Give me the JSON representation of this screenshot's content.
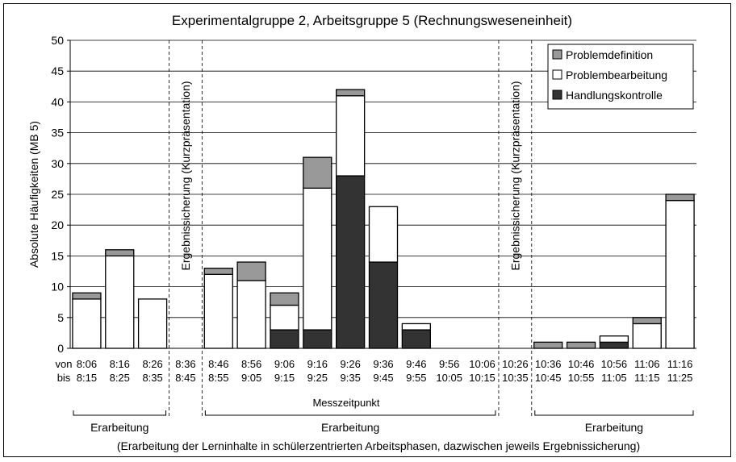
{
  "chart_data": {
    "type": "bar",
    "stacked": true,
    "title": "Experimentalgruppe 2, Arbeitsgruppe 5 (Rechnungsweseneinheit)",
    "ylabel": "Absolute Häufigkeiten (MB 5)",
    "xlabel": "Messzeitpunkt",
    "ylim": [
      0,
      50
    ],
    "yticks": [
      0,
      5,
      10,
      15,
      20,
      25,
      30,
      35,
      40,
      45,
      50
    ],
    "grid": true,
    "legend_position": "top-right",
    "row_labels": [
      "von",
      "bis"
    ],
    "categories_from": [
      "8:06",
      "8:16",
      "8:26",
      "8:36",
      "8:46",
      "8:56",
      "9:06",
      "9:16",
      "9:26",
      "9:36",
      "9:46",
      "9:56",
      "10:06",
      "10:26",
      "10:36",
      "10:46",
      "10:56",
      "11:06",
      "11:16"
    ],
    "categories_to": [
      "8:15",
      "8:25",
      "8:35",
      "8:45",
      "8:55",
      "9:05",
      "9:15",
      "9:25",
      "9:35",
      "9:45",
      "9:55",
      "10:05",
      "10:15",
      "10:35",
      "10:45",
      "10:55",
      "11:05",
      "11:15",
      "11:25"
    ],
    "series": [
      {
        "name": "Handlungskontrolle",
        "color": "#333333",
        "values": [
          0,
          0,
          0,
          0,
          0,
          0,
          3,
          3,
          28,
          14,
          3,
          0,
          0,
          0,
          0,
          0,
          1,
          0,
          0
        ]
      },
      {
        "name": "Problembearbeitung",
        "color": "#ffffff",
        "values": [
          8,
          15,
          8,
          0,
          12,
          11,
          4,
          23,
          13,
          9,
          1,
          0,
          0,
          0,
          0,
          0,
          1,
          4,
          24
        ]
      },
      {
        "name": "Problemdefinition",
        "color": "#999999",
        "values": [
          1,
          1,
          0,
          0,
          1,
          3,
          2,
          5,
          1,
          0,
          0,
          0,
          0,
          0,
          1,
          1,
          0,
          1,
          1
        ]
      }
    ],
    "annotations": [
      {
        "text": "Ergebnissicherung (Kurzpräsentation)",
        "between_categories": [
          2,
          3
        ]
      },
      {
        "text": "Ergebnissicherung (Kurzpräsentation)",
        "between_categories": [
          12,
          13
        ]
      }
    ],
    "phases": [
      {
        "label": "Erarbeitung",
        "from_category": 0,
        "to_category": 2
      },
      {
        "label": "Erarbeitung",
        "from_category": 4,
        "to_category": 12
      },
      {
        "label": "Erarbeitung",
        "from_category": 14,
        "to_category": 18
      }
    ],
    "caption": "(Erarbeitung der Lerninhalte in schülerzentrierten Arbeitsphasen, dazwischen jeweils Ergebnissicherung)"
  }
}
